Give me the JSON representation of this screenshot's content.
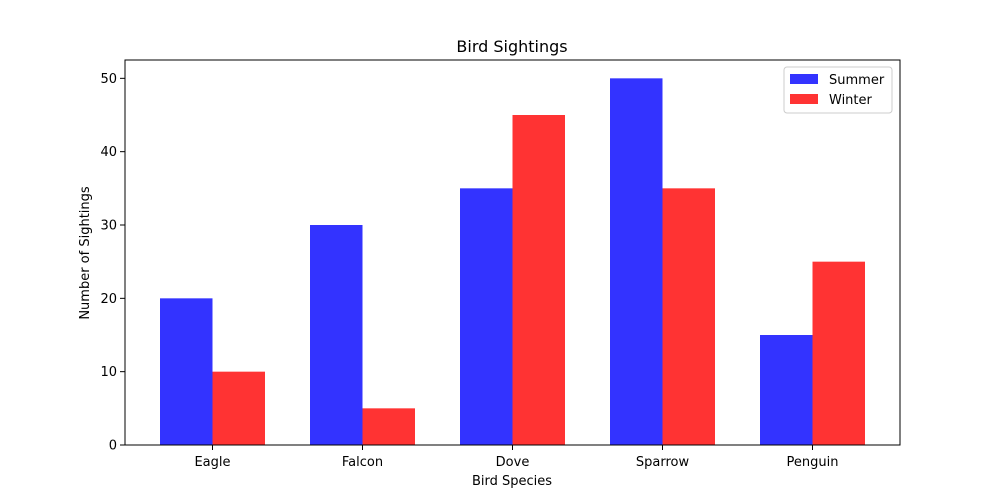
{
  "chart_data": {
    "type": "bar",
    "title": "Bird Sightings",
    "xlabel": "Bird Species",
    "ylabel": "Number of Sightings",
    "categories": [
      "Eagle",
      "Falcon",
      "Dove",
      "Sparrow",
      "Penguin"
    ],
    "series": [
      {
        "name": "Summer",
        "values": [
          20,
          30,
          35,
          50,
          15
        ],
        "color": "#3333ff"
      },
      {
        "name": "Winter",
        "values": [
          10,
          5,
          45,
          35,
          25
        ],
        "color": "#ff3333"
      }
    ],
    "ylim": [
      0,
      52.5
    ],
    "yticks": [
      0,
      10,
      20,
      30,
      40,
      50
    ],
    "grid": false,
    "legend_position": "top-right"
  }
}
